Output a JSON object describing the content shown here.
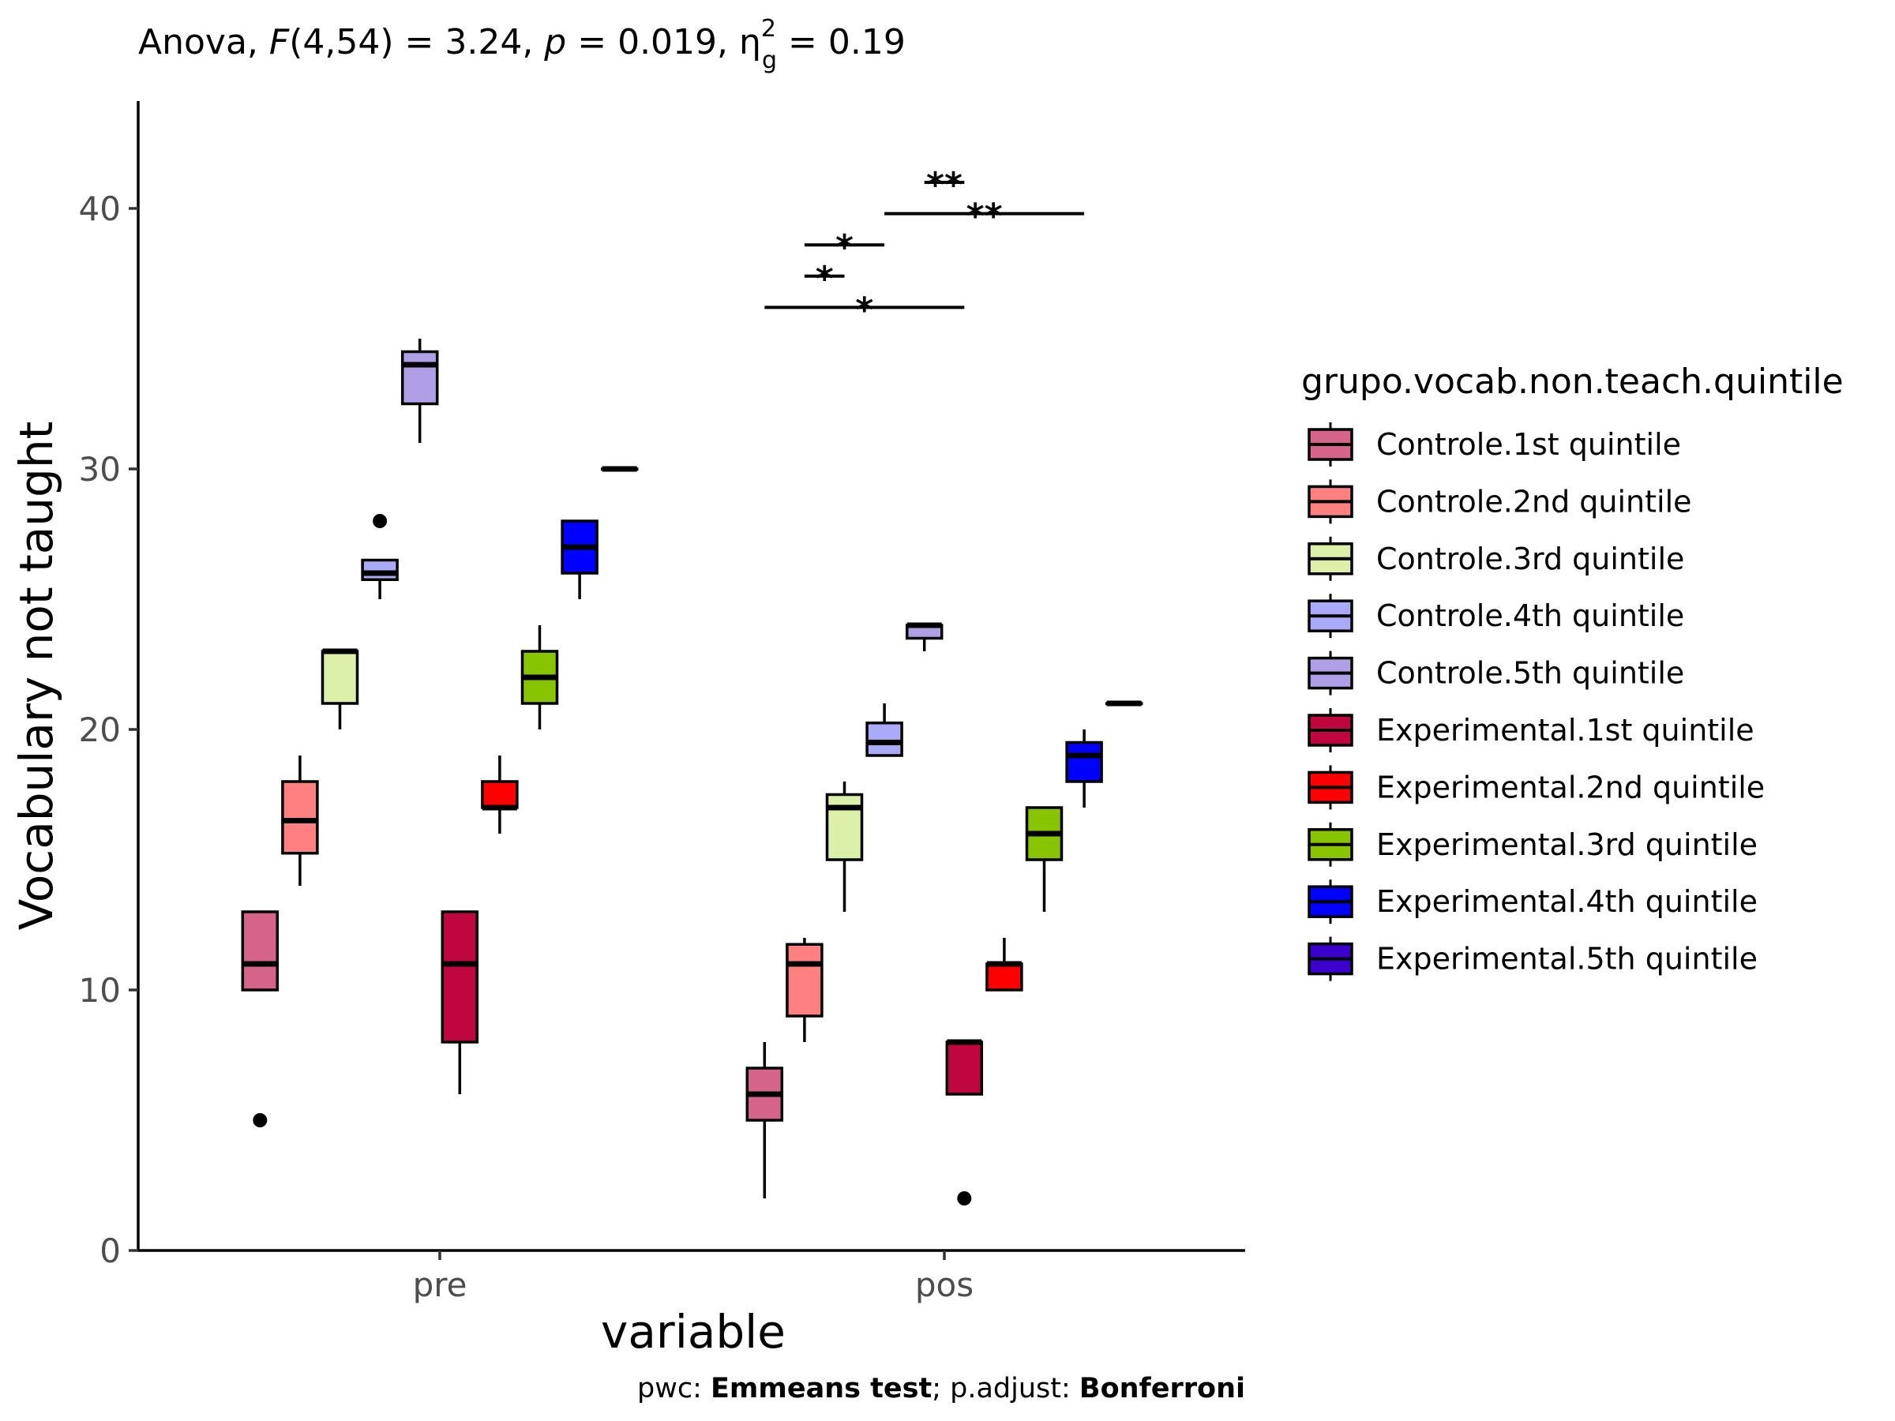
{
  "chart_data": {
    "type": "boxplot",
    "subtitle": {
      "prefix": "Anova, ",
      "stat": "F",
      "df": "(4,54) = 3.24, ",
      "p_label": "p",
      "p_value": " = 0.019, η",
      "eta_sup": "2",
      "eta_sub": "g",
      "eta_value": " = 0.19"
    },
    "caption": {
      "pwc_prefix": "pwc: ",
      "pwc_method": "Emmeans test",
      "adjust_prefix": "; p.adjust: ",
      "adjust_method": "Bonferroni"
    },
    "xlabel": "variable",
    "ylabel": "Vocabulary not taught",
    "categories": [
      "pre",
      "pos"
    ],
    "ylim": [
      0,
      44
    ],
    "yticks": [
      0,
      10,
      20,
      30,
      40
    ],
    "grid": false,
    "legend": {
      "title": "grupo.vocab.non.teach.quintile",
      "position": "right"
    },
    "series": [
      {
        "name": "Controle.1st quintile",
        "color": "#D6638A",
        "boxes": [
          {
            "q1": 10,
            "median": 11,
            "q3": 13,
            "lo": 10,
            "hi": 13,
            "outliers": [
              5
            ]
          },
          {
            "q1": 5,
            "median": 6,
            "q3": 7,
            "lo": 2,
            "hi": 8,
            "outliers": []
          }
        ]
      },
      {
        "name": "Controle.2nd quintile",
        "color": "#FF8080",
        "boxes": [
          {
            "q1": 15.25,
            "median": 16.5,
            "q3": 18,
            "lo": 14,
            "hi": 19,
            "outliers": []
          },
          {
            "q1": 9,
            "median": 11,
            "q3": 11.75,
            "lo": 8,
            "hi": 12,
            "outliers": []
          }
        ]
      },
      {
        "name": "Controle.3rd quintile",
        "color": "#DCF0AA",
        "boxes": [
          {
            "q1": 21,
            "median": 23,
            "q3": 23,
            "lo": 20,
            "hi": 23,
            "outliers": []
          },
          {
            "q1": 15,
            "median": 17,
            "q3": 17.5,
            "lo": 13,
            "hi": 18,
            "outliers": []
          }
        ]
      },
      {
        "name": "Controle.4th quintile",
        "color": "#AAAAF8",
        "boxes": [
          {
            "q1": 25.75,
            "median": 26,
            "q3": 26.5,
            "lo": 25,
            "hi": 26.5,
            "outliers": [
              28
            ]
          },
          {
            "q1": 19,
            "median": 19.5,
            "q3": 20.25,
            "lo": 19,
            "hi": 21,
            "outliers": []
          }
        ]
      },
      {
        "name": "Controle.5th quintile",
        "color": "#B09EE6",
        "boxes": [
          {
            "q1": 32.5,
            "median": 34,
            "q3": 34.5,
            "lo": 31,
            "hi": 35,
            "outliers": []
          },
          {
            "q1": 23.5,
            "median": 24,
            "q3": 24,
            "lo": 23,
            "hi": 24,
            "outliers": []
          }
        ]
      },
      {
        "name": "Experimental.1st quintile",
        "color": "#C0063F",
        "boxes": [
          {
            "q1": 8,
            "median": 11,
            "q3": 13,
            "lo": 6,
            "hi": 13,
            "outliers": []
          },
          {
            "q1": 6,
            "median": 8,
            "q3": 8,
            "lo": 6,
            "hi": 8,
            "outliers": [
              2
            ]
          }
        ]
      },
      {
        "name": "Experimental.2nd quintile",
        "color": "#FF0000",
        "boxes": [
          {
            "q1": 17,
            "median": 17,
            "q3": 18,
            "lo": 16,
            "hi": 19,
            "outliers": []
          },
          {
            "q1": 10,
            "median": 11,
            "q3": 11,
            "lo": 10,
            "hi": 12,
            "outliers": []
          }
        ]
      },
      {
        "name": "Experimental.3rd quintile",
        "color": "#88C400",
        "boxes": [
          {
            "q1": 21,
            "median": 22,
            "q3": 23,
            "lo": 20,
            "hi": 24,
            "outliers": []
          },
          {
            "q1": 15,
            "median": 16,
            "q3": 17,
            "lo": 13,
            "hi": 17,
            "outliers": []
          }
        ]
      },
      {
        "name": "Experimental.4th quintile",
        "color": "#0000FF",
        "boxes": [
          {
            "q1": 26,
            "median": 27,
            "q3": 28,
            "lo": 25,
            "hi": 28,
            "outliers": []
          },
          {
            "q1": 18,
            "median": 19,
            "q3": 19.5,
            "lo": 17,
            "hi": 20,
            "outliers": []
          }
        ]
      },
      {
        "name": "Experimental.5th quintile",
        "color": "#3B00CC",
        "boxes": [
          {
            "q1": 30,
            "median": 30,
            "q3": 30,
            "lo": 30,
            "hi": 30,
            "outliers": []
          },
          {
            "q1": 21,
            "median": 21,
            "q3": 21,
            "lo": 21,
            "hi": 21,
            "outliers": []
          }
        ]
      }
    ],
    "significance": [
      {
        "category": "pos",
        "from": 0,
        "to": 5,
        "y": 36.2,
        "label": "*"
      },
      {
        "category": "pos",
        "from": 1,
        "to": 2,
        "y": 37.4,
        "label": "*"
      },
      {
        "category": "pos",
        "from": 1,
        "to": 3,
        "y": 38.6,
        "label": "*"
      },
      {
        "category": "pos",
        "from": 3,
        "to": 8,
        "y": 39.8,
        "label": "**"
      },
      {
        "category": "pos",
        "from": 4,
        "to": 5,
        "y": 41.0,
        "label": "**"
      }
    ]
  }
}
